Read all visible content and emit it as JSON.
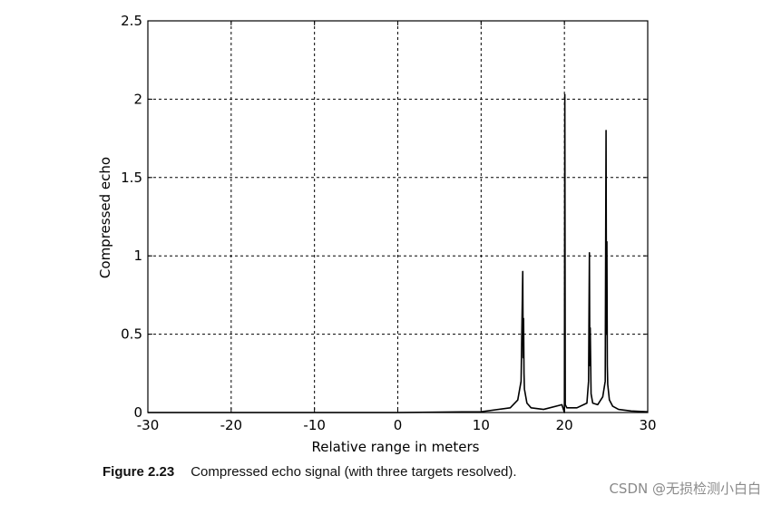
{
  "chart_data": {
    "type": "line",
    "xlabel": "Relative range in meters",
    "ylabel": "Compressed echo",
    "xlim": [
      -30,
      30
    ],
    "ylim": [
      0,
      2.5
    ],
    "xticks": [
      -30,
      -20,
      -10,
      0,
      10,
      20,
      30
    ],
    "yticks": [
      0,
      0.5,
      1,
      1.5,
      2,
      2.5
    ],
    "xtick_labels": [
      "-30",
      "-20",
      "-10",
      "0",
      "10",
      "20",
      "30"
    ],
    "ytick_labels": [
      "0",
      "0.5",
      "1",
      "1.5",
      "2",
      "2.5"
    ],
    "grid": true,
    "line_color": "#000000",
    "series": [
      {
        "x": [
          -30,
          0,
          10,
          13.5,
          14.4,
          14.8,
          15.0,
          15.05,
          15.1,
          15.15,
          15.2,
          15.5,
          16.0,
          17.5,
          19.7,
          20.0,
          20.05,
          20.1,
          20.3,
          21.5,
          22.7,
          22.9,
          23.0,
          23.05,
          23.1,
          23.2,
          23.4,
          24.0,
          24.6,
          24.9,
          25.0,
          25.05,
          25.1,
          25.15,
          25.2,
          25.4,
          25.8,
          26.5,
          28,
          30
        ],
        "y": [
          0,
          0,
          0.005,
          0.03,
          0.08,
          0.2,
          0.9,
          0.35,
          0.6,
          0.25,
          0.15,
          0.06,
          0.03,
          0.02,
          0.05,
          0.0,
          2.03,
          0.05,
          0.03,
          0.03,
          0.06,
          0.2,
          1.02,
          0.3,
          0.54,
          0.12,
          0.06,
          0.05,
          0.1,
          0.2,
          1.8,
          0.5,
          1.09,
          0.3,
          0.18,
          0.08,
          0.04,
          0.02,
          0.01,
          0.005
        ]
      }
    ]
  },
  "caption": {
    "figure_number": "Figure 2.23",
    "text": "Compressed echo signal (with three targets resolved)."
  },
  "watermark": "CSDN @无损检测小白白"
}
